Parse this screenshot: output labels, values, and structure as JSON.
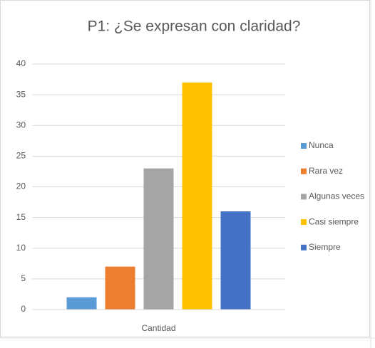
{
  "chart_data": {
    "type": "bar",
    "title": "P1: ¿Se expresan con claridad?",
    "categories": [
      "Cantidad"
    ],
    "series": [
      {
        "name": "Nunca",
        "color": "#5b9bd5",
        "values": [
          2
        ]
      },
      {
        "name": "Rara vez",
        "color": "#ed7d31",
        "values": [
          7
        ]
      },
      {
        "name": "Algunas veces",
        "color": "#a5a5a5",
        "values": [
          23
        ]
      },
      {
        "name": "Casi siempre",
        "color": "#ffc000",
        "values": [
          37
        ]
      },
      {
        "name": "Siempre",
        "color": "#4472c4",
        "values": [
          16
        ]
      }
    ],
    "ylim": [
      0,
      40
    ],
    "yticks": [
      0,
      5,
      10,
      15,
      20,
      25,
      30,
      35,
      40
    ],
    "grid": true,
    "legend": "right"
  }
}
